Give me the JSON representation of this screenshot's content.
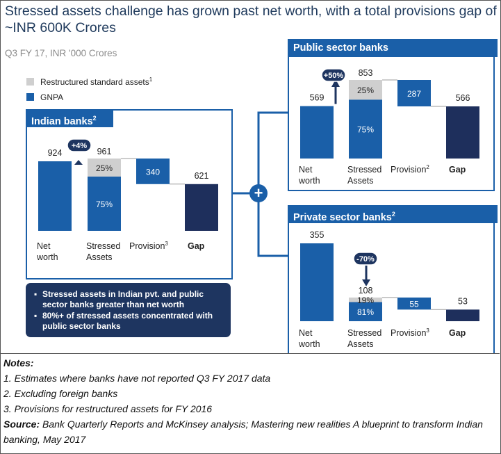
{
  "title": "Stressed assets challenge has grown past net worth, with a total provisions gap of ~INR 600K Crores",
  "subtitle": "Q3 FY 17, INR '000 Crores",
  "legend": {
    "restructured": "Restructured standard assets",
    "restructured_note": "1",
    "gnpa": "GNPA"
  },
  "colors": {
    "blue": "#1a5fa8",
    "navy": "#1e2f5c",
    "grey": "#cfcfcf",
    "badge": "#1e3560"
  },
  "panels": {
    "indian": {
      "title": "Indian banks",
      "note": "2"
    },
    "public": {
      "title": "Public sector banks"
    },
    "private": {
      "title": "Private sector banks",
      "note": "2"
    }
  },
  "summary": {
    "bullets": [
      "Stressed assets in Indian pvt. and public sector banks greater than net worth",
      "80%+ of stressed assets concentrated with public sector banks"
    ]
  },
  "notes": {
    "heading": "Notes:",
    "items": [
      "1. Estimates where banks have not reported Q3 FY 2017 data",
      "2. Excluding foreign banks",
      "3. Provisions for restructured assets for FY 2016"
    ],
    "source_label": "Source:",
    "source_text": "  Bank Quarterly Reports and McKinsey analysis; Mastering new realities A blueprint to transform Indian banking, May 2017"
  },
  "chart_data": [
    {
      "type": "bar",
      "subtype": "waterfall",
      "title": "Indian banks",
      "categories": [
        "Net worth",
        "Stressed Assets",
        "Provision",
        "Gap"
      ],
      "category_notes": [
        "",
        "",
        "3",
        ""
      ],
      "values": [
        924,
        961,
        340,
        621
      ],
      "labels": [
        "924",
        "961",
        "340",
        "621"
      ],
      "stressed_split": {
        "gnpa_pct_label": "75%",
        "restructured_pct_label": "25%",
        "gnpa_share": 0.75
      },
      "change_badge": "+4%",
      "ylim": [
        0,
        961
      ]
    },
    {
      "type": "bar",
      "subtype": "waterfall",
      "title": "Public sector banks",
      "categories": [
        "Net worth",
        "Stressed Assets",
        "Provision",
        "Gap"
      ],
      "category_notes": [
        "",
        "",
        "2",
        ""
      ],
      "values": [
        569,
        853,
        287,
        566
      ],
      "labels": [
        "569",
        "853",
        "287",
        "566"
      ],
      "stressed_split": {
        "gnpa_pct_label": "75%",
        "restructured_pct_label": "25%",
        "gnpa_share": 0.75
      },
      "change_badge": "+50%",
      "ylim": [
        0,
        853
      ]
    },
    {
      "type": "bar",
      "subtype": "waterfall",
      "title": "Private sector banks",
      "categories": [
        "Net worth",
        "Stressed Assets",
        "Provision",
        "Gap"
      ],
      "category_notes": [
        "",
        "",
        "3",
        ""
      ],
      "values": [
        355,
        108,
        55,
        53
      ],
      "labels": [
        "355",
        "108",
        "55",
        "53"
      ],
      "stressed_split": {
        "gnpa_pct_label": "81%",
        "restructured_pct_label": "19%",
        "gnpa_share": 0.81
      },
      "change_badge": "-70%",
      "ylim": [
        0,
        355
      ]
    }
  ]
}
